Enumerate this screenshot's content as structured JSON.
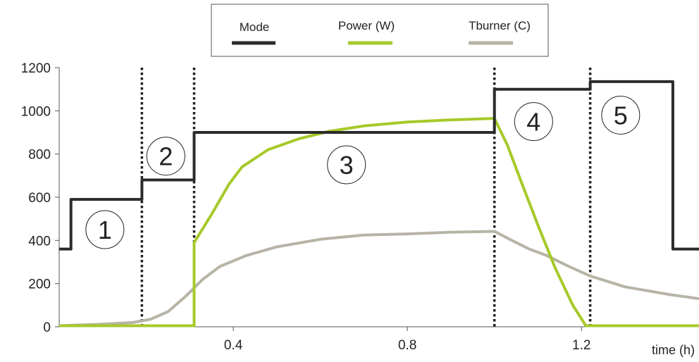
{
  "chart_data": {
    "type": "line",
    "xlabel": "time (h)",
    "ylabel": "",
    "xlim": [
      0.0,
      1.47
    ],
    "ylim": [
      0,
      1200
    ],
    "xticks": [
      0.4,
      0.8,
      1.2
    ],
    "xtick_labels": [
      "0.4",
      "0.8",
      "1.2"
    ],
    "yticks": [
      0,
      200,
      400,
      600,
      800,
      1000,
      1200
    ],
    "ytick_labels": [
      "0",
      "200",
      "400",
      "600",
      "800",
      "1000",
      "1200"
    ],
    "grid": false,
    "legend_position": "top-center",
    "series": [
      {
        "name": "Mode",
        "color": "#2b2b2b",
        "x": [
          0.0,
          0.027,
          0.027,
          0.19,
          0.19,
          0.31,
          0.31,
          1.0,
          1.0,
          1.22,
          1.22,
          1.41,
          1.41,
          1.47
        ],
        "y": [
          360,
          360,
          590,
          590,
          680,
          680,
          900,
          900,
          1100,
          1100,
          1135,
          1135,
          360,
          360
        ]
      },
      {
        "name": "Power (W)",
        "color": "#a6c92a",
        "x": [
          0.0,
          0.31,
          0.31,
          0.35,
          0.39,
          0.42,
          0.48,
          0.55,
          0.62,
          0.7,
          0.8,
          0.9,
          1.0,
          1.03,
          1.06,
          1.1,
          1.14,
          1.18,
          1.21,
          1.47
        ],
        "y": [
          5,
          5,
          390,
          520,
          660,
          740,
          820,
          870,
          905,
          930,
          948,
          958,
          965,
          840,
          680,
          470,
          270,
          100,
          5,
          5
        ]
      },
      {
        "name": "Tburner (C)",
        "color": "#b7b4a6",
        "x": [
          0.0,
          0.1,
          0.17,
          0.21,
          0.25,
          0.29,
          0.33,
          0.37,
          0.43,
          0.5,
          0.6,
          0.7,
          0.8,
          0.9,
          1.0,
          1.04,
          1.08,
          1.12,
          1.17,
          1.22,
          1.3,
          1.4,
          1.47
        ],
        "y": [
          5,
          12,
          20,
          35,
          70,
          140,
          220,
          280,
          330,
          370,
          405,
          425,
          430,
          438,
          442,
          400,
          360,
          330,
          280,
          235,
          185,
          150,
          130
        ]
      }
    ],
    "phase_boundaries": [
      0.19,
      0.31,
      1.0,
      1.22
    ],
    "phase_labels": [
      {
        "label": "1",
        "x": 0.105,
        "y": 450
      },
      {
        "label": "2",
        "x": 0.245,
        "y": 790
      },
      {
        "label": "3",
        "x": 0.66,
        "y": 750
      },
      {
        "label": "4",
        "x": 1.09,
        "y": 950
      },
      {
        "label": "5",
        "x": 1.29,
        "y": 980
      }
    ]
  }
}
